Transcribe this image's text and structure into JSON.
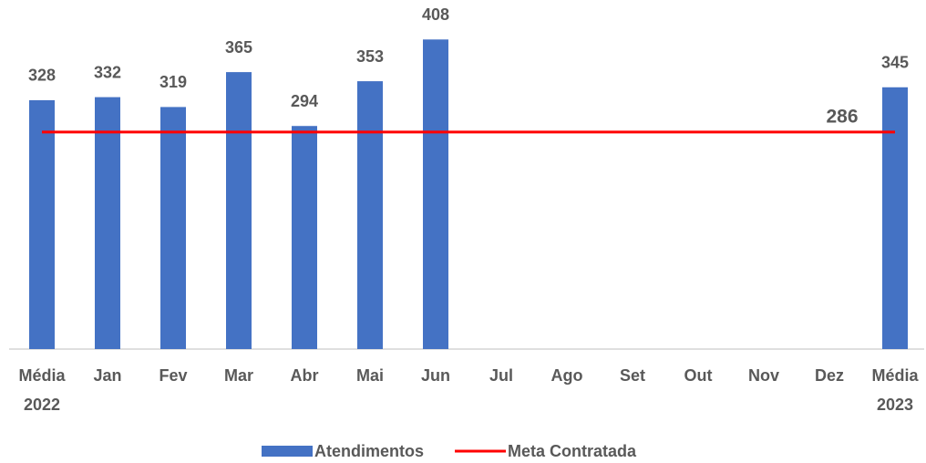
{
  "chart_data": {
    "type": "bar",
    "categories": [
      "Média\n2022",
      "Jan",
      "Fev",
      "Mar",
      "Abr",
      "Mai",
      "Jun",
      "Jul",
      "Ago",
      "Set",
      "Out",
      "Nov",
      "Dez",
      "Média\n2023"
    ],
    "series": [
      {
        "name": "Atendimentos",
        "type": "bar",
        "color": "#4472c4",
        "values": [
          328,
          332,
          319,
          365,
          294,
          353,
          408,
          null,
          null,
          null,
          null,
          null,
          null,
          345
        ]
      },
      {
        "name": "Meta Contratada",
        "type": "line",
        "color": "#ff0000",
        "values": [
          286,
          286,
          286,
          286,
          286,
          286,
          286,
          286,
          286,
          286,
          286,
          286,
          286,
          286
        ]
      }
    ],
    "ylim": [
      0,
      430
    ],
    "legend": "bottom"
  }
}
